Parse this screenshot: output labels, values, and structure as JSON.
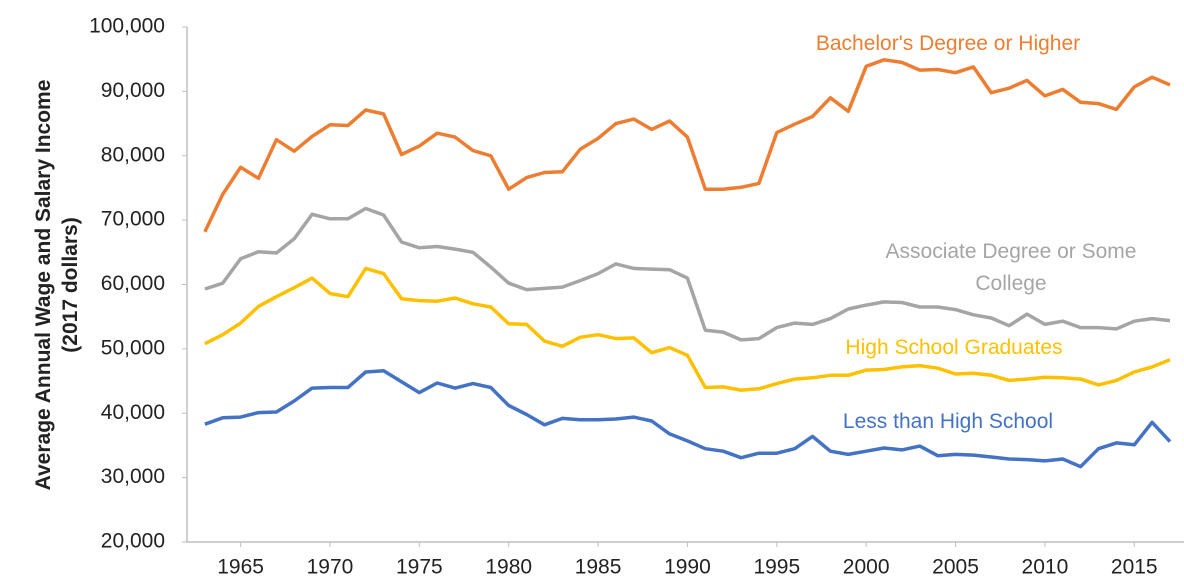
{
  "chart_data": {
    "type": "line",
    "y_label": "Average Annual Wage and Salary Income (2017 dollars)",
    "x": [
      1963,
      1964,
      1965,
      1966,
      1967,
      1968,
      1969,
      1970,
      1971,
      1972,
      1973,
      1974,
      1975,
      1976,
      1977,
      1978,
      1979,
      1980,
      1981,
      1982,
      1983,
      1984,
      1985,
      1986,
      1987,
      1988,
      1989,
      1990,
      1991,
      1992,
      1993,
      1994,
      1995,
      1996,
      1997,
      1998,
      1999,
      2000,
      2001,
      2002,
      2003,
      2004,
      2005,
      2006,
      2007,
      2008,
      2009,
      2010,
      2011,
      2012,
      2013,
      2014,
      2015,
      2016,
      2017
    ],
    "xlim": [
      1962,
      2017
    ],
    "xticks": [
      1965,
      1970,
      1975,
      1980,
      1985,
      1990,
      1995,
      2000,
      2005,
      2010,
      2015
    ],
    "ylim": [
      20000,
      100000
    ],
    "yticks": [
      {
        "value": 20000,
        "label": "20,000"
      },
      {
        "value": 30000,
        "label": "30,000"
      },
      {
        "value": 40000,
        "label": "40,000"
      },
      {
        "value": 50000,
        "label": "50,000"
      },
      {
        "value": 60000,
        "label": "60,000"
      },
      {
        "value": 70000,
        "label": "70,000"
      },
      {
        "value": 80000,
        "label": "80,000"
      },
      {
        "value": 90000,
        "label": "90,000"
      },
      {
        "value": 100000,
        "label": "100,000"
      }
    ],
    "series": [
      {
        "name": "Bachelor's Degree or Higher",
        "color": "#ed7d31",
        "values": [
          68200,
          74000,
          78200,
          76500,
          82500,
          80700,
          83000,
          84800,
          84700,
          87100,
          86500,
          80200,
          81500,
          83500,
          82900,
          80800,
          80000,
          74800,
          76600,
          77400,
          77500,
          81000,
          82700,
          85000,
          85700,
          84100,
          85400,
          82900,
          74800,
          74800,
          75100,
          75700,
          83600,
          84900,
          86100,
          89000,
          86900,
          93900,
          94900,
          94500,
          93300,
          93400,
          92900,
          93800,
          89800,
          90500,
          91700,
          89300,
          90300,
          88300,
          88100,
          87200,
          90700,
          92200,
          91000
        ]
      },
      {
        "name": "Associate Degree or Some College",
        "color": "#a5a5a5",
        "values": [
          59300,
          60200,
          64000,
          65100,
          64900,
          67100,
          70900,
          70200,
          70200,
          71800,
          70800,
          66600,
          65700,
          65900,
          65500,
          65000,
          62700,
          60200,
          59200,
          59400,
          59600,
          60600,
          61700,
          63200,
          62500,
          62400,
          62300,
          61000,
          52900,
          52600,
          51400,
          51600,
          53300,
          54000,
          53800,
          54700,
          56200,
          56800,
          57300,
          57200,
          56500,
          56500,
          56100,
          55300,
          54800,
          53600,
          55400,
          53800,
          54300,
          53300,
          53300,
          53100,
          54300,
          54700,
          54400
        ]
      },
      {
        "name": "High School Graduates",
        "color": "#ffc000",
        "values": [
          50800,
          52200,
          54000,
          56600,
          58100,
          59500,
          61000,
          58600,
          58100,
          62500,
          61700,
          57800,
          57500,
          57400,
          57900,
          57000,
          56500,
          53900,
          53800,
          51200,
          50400,
          51800,
          52200,
          51600,
          51700,
          49400,
          50200,
          49000,
          44000,
          44100,
          43600,
          43800,
          44600,
          45300,
          45500,
          45900,
          45900,
          46700,
          46800,
          47200,
          47400,
          47000,
          46100,
          46200,
          45900,
          45100,
          45300,
          45600,
          45500,
          45300,
          44400,
          45100,
          46400,
          47200,
          48300
        ]
      },
      {
        "name": "Less than High School",
        "color": "#4472c4",
        "values": [
          38300,
          39300,
          39400,
          40100,
          40200,
          41900,
          43900,
          44000,
          44000,
          46400,
          46600,
          44900,
          43200,
          44700,
          43900,
          44600,
          44000,
          41200,
          39800,
          38200,
          39200,
          39000,
          39000,
          39100,
          39400,
          38800,
          36800,
          35700,
          34500,
          34100,
          33100,
          33800,
          33800,
          34500,
          36400,
          34100,
          33600,
          34100,
          34600,
          34300,
          34900,
          33400,
          33600,
          33500,
          33200,
          32900,
          32800,
          32600,
          32900,
          31700,
          34500,
          35400,
          35100,
          38600,
          35600
        ]
      }
    ]
  }
}
